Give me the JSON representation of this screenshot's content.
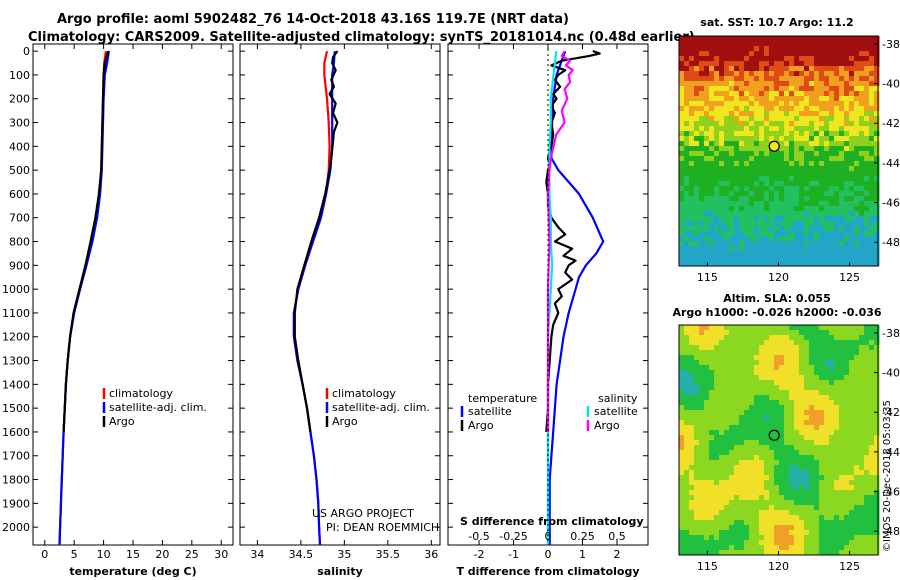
{
  "header": {
    "title_line1": "Argo profile: aoml 5902482_76 14-Oct-2018 43.16S 119.7E (NRT data)",
    "title_line2": "Climatology: CARS2009. Satellite-adjusted climatology: synTS_20181014.nc (0.48d earlier)"
  },
  "colors": {
    "climatology": "#ff0000",
    "satellite": "#0000ff",
    "argo": "#000000",
    "satellite_s": "#00e5ee",
    "argo_s": "#ff00ff"
  },
  "credits": {
    "project": "US ARGO PROJECT",
    "pi": "PI: DEAN ROEMMICH",
    "stamp": "©IMOS 20-Dec-2018 05:03:35"
  },
  "chart_data": [
    {
      "type": "line",
      "id": "temperature",
      "xlabel": "temperature (deg C)",
      "ylabel": "",
      "xlim": [
        -2,
        32
      ],
      "ylim": [
        2075,
        -30
      ],
      "xticks": [
        "0",
        "5",
        "10",
        "15",
        "20",
        "25",
        "30"
      ],
      "xtick_values": [
        0,
        5,
        10,
        15,
        20,
        25,
        30
      ],
      "ytick_values": [
        0,
        100,
        200,
        300,
        400,
        500,
        600,
        700,
        800,
        900,
        1000,
        1100,
        1200,
        1300,
        1400,
        1500,
        1600,
        1700,
        1800,
        1900,
        2000
      ],
      "ytick_labels": [
        "0",
        "100",
        "200",
        "300",
        "400",
        "500",
        "600",
        "700",
        "800",
        "900",
        "1000",
        "1100",
        "1200",
        "1300",
        "1400",
        "1500",
        "1600",
        "1700",
        "1800",
        "1900",
        "2000"
      ],
      "legend": [
        "climatology",
        "satellite-adj. clim.",
        "Argo"
      ],
      "series": [
        {
          "name": "climatology",
          "color": "#ff0000",
          "depth": [
            0,
            50,
            100,
            200,
            300,
            400,
            500,
            600,
            700,
            800,
            900,
            1000,
            1100,
            1200,
            1300,
            1400,
            1600,
            1800,
            2000,
            2075
          ],
          "values": [
            10.4,
            10.1,
            10.0,
            9.9,
            9.8,
            9.7,
            9.6,
            9.3,
            8.8,
            8.0,
            7.0,
            5.9,
            4.9,
            4.3,
            3.9,
            3.6,
            3.2,
            2.9,
            2.6,
            2.5
          ]
        },
        {
          "name": "satellite-adj. clim.",
          "color": "#0000ff",
          "depth": [
            0,
            50,
            100,
            200,
            300,
            400,
            500,
            600,
            700,
            800,
            900,
            1000,
            1100,
            1200,
            1300,
            1400,
            1600,
            1800,
            2000,
            2075
          ],
          "values": [
            10.9,
            10.6,
            10.2,
            10.0,
            9.9,
            9.8,
            9.7,
            9.4,
            8.9,
            8.1,
            7.1,
            6.0,
            5.0,
            4.3,
            3.9,
            3.6,
            3.2,
            2.9,
            2.6,
            2.5
          ]
        },
        {
          "name": "Argo",
          "color": "#000000",
          "depth": [
            0,
            50,
            100,
            200,
            300,
            400,
            500,
            600,
            700,
            800,
            900,
            1000,
            1100,
            1200,
            1300,
            1400,
            1500,
            1600
          ],
          "values": [
            10.8,
            10.2,
            10.0,
            9.9,
            9.8,
            9.7,
            9.6,
            9.2,
            8.6,
            7.8,
            6.9,
            5.9,
            4.9,
            4.3,
            3.9,
            3.6,
            3.4,
            3.2
          ]
        }
      ]
    },
    {
      "type": "line",
      "id": "salinity",
      "xlabel": "salinity",
      "xlim": [
        33.8,
        36.1
      ],
      "ylim": [
        2075,
        -30
      ],
      "xticks": [
        "34",
        "34.5",
        "35",
        "35.5",
        "36"
      ],
      "xtick_values": [
        34,
        34.5,
        35,
        35.5,
        36
      ],
      "legend": [
        "climatology",
        "satellite-adj. clim.",
        "Argo"
      ],
      "series": [
        {
          "name": "climatology",
          "color": "#ff0000",
          "depth": [
            0,
            50,
            100,
            200,
            300,
            400,
            500,
            600,
            700,
            800,
            900,
            1000,
            1100,
            1200,
            1300,
            1400,
            1500,
            1600,
            1700,
            1800,
            1900,
            2000,
            2075
          ],
          "values": [
            34.8,
            34.77,
            34.77,
            34.8,
            34.82,
            34.83,
            34.82,
            34.79,
            34.73,
            34.64,
            34.55,
            34.47,
            34.42,
            34.42,
            34.46,
            34.52,
            34.57,
            34.61,
            34.65,
            34.68,
            34.7,
            34.71,
            34.72
          ]
        },
        {
          "name": "satellite-adj. clim.",
          "color": "#0000ff",
          "depth": [
            0,
            50,
            100,
            200,
            300,
            400,
            500,
            600,
            700,
            800,
            900,
            1000,
            1100,
            1200,
            1300,
            1400,
            1500,
            1600,
            1700,
            1800,
            1900,
            2000,
            2075
          ],
          "values": [
            34.89,
            34.88,
            34.86,
            34.86,
            34.86,
            34.86,
            34.84,
            34.79,
            34.73,
            34.64,
            34.55,
            34.47,
            34.42,
            34.42,
            34.46,
            34.52,
            34.57,
            34.61,
            34.65,
            34.68,
            34.7,
            34.71,
            34.72
          ]
        },
        {
          "name": "Argo",
          "color": "#000000",
          "depth": [
            0,
            25,
            50,
            80,
            120,
            150,
            180,
            220,
            260,
            300,
            340,
            380,
            450,
            500,
            600,
            700,
            800,
            900,
            1000,
            1100,
            1200,
            1300,
            1400,
            1500,
            1600
          ],
          "values": [
            34.92,
            34.87,
            34.86,
            34.9,
            34.85,
            34.88,
            34.83,
            34.9,
            34.87,
            34.92,
            34.88,
            34.87,
            34.85,
            34.83,
            34.78,
            34.71,
            34.62,
            34.54,
            34.46,
            34.43,
            34.43,
            34.47,
            34.52,
            34.57,
            34.61
          ]
        }
      ]
    },
    {
      "type": "line",
      "id": "differences",
      "xlabel": "T difference from climatology",
      "xlabel2": "S difference from climatology",
      "xlim": [
        -2.9,
        2.9
      ],
      "ylim": [
        2075,
        -30
      ],
      "xticks": [
        "-2",
        "-1",
        "0",
        "1",
        "2"
      ],
      "xtick_values": [
        -2,
        -1,
        0,
        1,
        2
      ],
      "sticks": [
        "-0.5",
        "-0.25",
        "0",
        "0.25",
        "0.5"
      ],
      "stick_values": [
        -0.5,
        -0.25,
        0,
        0.25,
        0.5
      ],
      "legend_t_title": "temperature",
      "legend_s_title": "salinity",
      "legend_t": [
        "satellite",
        "Argo"
      ],
      "legend_s": [
        "satellite",
        "Argo"
      ],
      "series": [
        {
          "name": "T satellite",
          "color": "#0000ff",
          "depth": [
            0,
            100,
            200,
            300,
            400,
            450,
            500,
            550,
            600,
            700,
            800,
            850,
            900,
            950,
            1000,
            1050,
            1100,
            1200,
            1300,
            1400,
            1500,
            1600,
            1700,
            1800,
            1900,
            2000,
            2075
          ],
          "values": [
            0.5,
            0.25,
            0.15,
            0.12,
            0.1,
            0.1,
            0.3,
            0.6,
            0.9,
            1.3,
            1.6,
            1.4,
            1.1,
            0.9,
            0.8,
            0.7,
            0.6,
            0.45,
            0.35,
            0.25,
            0.2,
            0.15,
            0.1,
            0.05,
            0.05,
            0.05,
            0.05
          ]
        },
        {
          "name": "T Argo",
          "color": "#000000",
          "depth": [
            0,
            10,
            20,
            30,
            40,
            60,
            80,
            100,
            120,
            150,
            180,
            200,
            230,
            260,
            300,
            350,
            400,
            420,
            450,
            480,
            500,
            550,
            600,
            650,
            700,
            740,
            770,
            800,
            830,
            860,
            880,
            900,
            930,
            960,
            1000,
            1030,
            1060,
            1100,
            1150,
            1200,
            1300,
            1400,
            1500,
            1600
          ],
          "values": [
            1.3,
            1.5,
            1.2,
            0.8,
            0.4,
            0.1,
            0.5,
            0.3,
            0.2,
            0.35,
            0.15,
            0.25,
            0.1,
            0.2,
            0.1,
            0.15,
            0.1,
            0.05,
            0.0,
            0.05,
            0.0,
            -0.05,
            0.0,
            0.0,
            0.1,
            0.3,
            0.5,
            0.2,
            0.7,
            0.45,
            0.8,
            0.6,
            0.5,
            0.7,
            0.3,
            0.4,
            0.2,
            0.3,
            0.15,
            0.1,
            0.05,
            0.0,
            0.0,
            -0.05
          ]
        },
        {
          "name": "S satellite",
          "color": "#00e5ee",
          "depth": [
            0,
            50,
            100,
            200,
            300,
            400,
            500,
            600,
            700,
            800,
            900,
            1000,
            1100,
            1200,
            1400,
            1600,
            1800,
            2000,
            2075
          ],
          "values": [
            0.06,
            0.05,
            0.04,
            0.02,
            0.02,
            0.01,
            0.01,
            0.01,
            0.02,
            0.02,
            0.03,
            0.02,
            0.01,
            0.0,
            0.0,
            0.0,
            0.0,
            0.0,
            0.0
          ]
        },
        {
          "name": "S Argo",
          "color": "#ff00ff",
          "depth": [
            0,
            20,
            40,
            60,
            80,
            100,
            130,
            160,
            200,
            250,
            300,
            350,
            400,
            450,
            500,
            600,
            800,
            1000,
            1200,
            1400,
            1600
          ],
          "values": [
            0.12,
            0.1,
            0.16,
            0.13,
            0.18,
            0.15,
            0.16,
            0.12,
            0.14,
            0.1,
            0.12,
            0.06,
            0.04,
            0.02,
            0.01,
            0.0,
            0.01,
            0.0,
            0.0,
            0.0,
            0.0
          ]
        }
      ]
    },
    {
      "type": "heatmap",
      "id": "sst_map",
      "title": "sat. SST: 10.7 Argo: 11.2",
      "xlim": [
        113,
        127
      ],
      "ylim": [
        -49.2,
        -37.6
      ],
      "xticks": [
        "115",
        "120",
        "125"
      ],
      "xtick_values": [
        115,
        120,
        125
      ],
      "yticks": [
        "-38",
        "-40",
        "-42",
        "-44",
        "-46",
        "-48"
      ],
      "ytick_values": [
        -38,
        -40,
        -42,
        -44,
        -46,
        -48
      ],
      "marker": {
        "lon": 119.7,
        "lat": -43.16
      }
    },
    {
      "type": "heatmap",
      "id": "sla_map",
      "title": "Altim. SLA: 0.055",
      "subtitle": "Argo h1000: -0.026 h2000: -0.036",
      "xlim": [
        113,
        127
      ],
      "ylim": [
        -49.2,
        -37.6
      ],
      "xticks": [
        "115",
        "120",
        "125"
      ],
      "xtick_values": [
        115,
        120,
        125
      ],
      "yticks": [
        "-38",
        "-40",
        "-42",
        "-44",
        "-46",
        "-48"
      ],
      "ytick_values": [
        -38,
        -40,
        -42,
        -44,
        -46,
        -48
      ],
      "marker": {
        "lon": 119.7,
        "lat": -43.16
      }
    }
  ]
}
